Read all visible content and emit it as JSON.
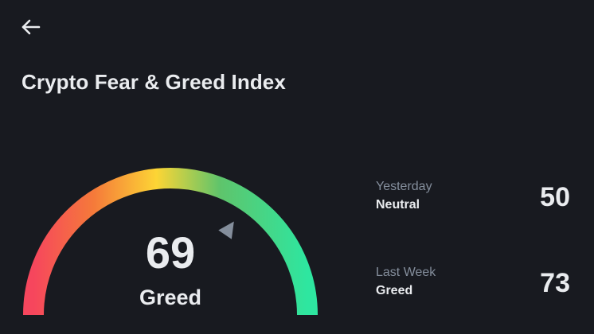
{
  "header": {
    "back_icon": "arrow-left-icon",
    "title": "Crypto Fear & Greed Index"
  },
  "gauge": {
    "value": 69,
    "value_text": "69",
    "label": "Greed",
    "min": 0,
    "max": 100,
    "colors": [
      "#f6465d",
      "#fcd535",
      "#2ebd85",
      "#2ee6a0"
    ],
    "pointer_color": "#848e9c",
    "pointer_icon": "triangle-pointer-icon"
  },
  "history": [
    {
      "period": "Yesterday",
      "sentiment": "Neutral",
      "score": "50"
    },
    {
      "period": "Last Week",
      "sentiment": "Greed",
      "score": "73"
    }
  ]
}
